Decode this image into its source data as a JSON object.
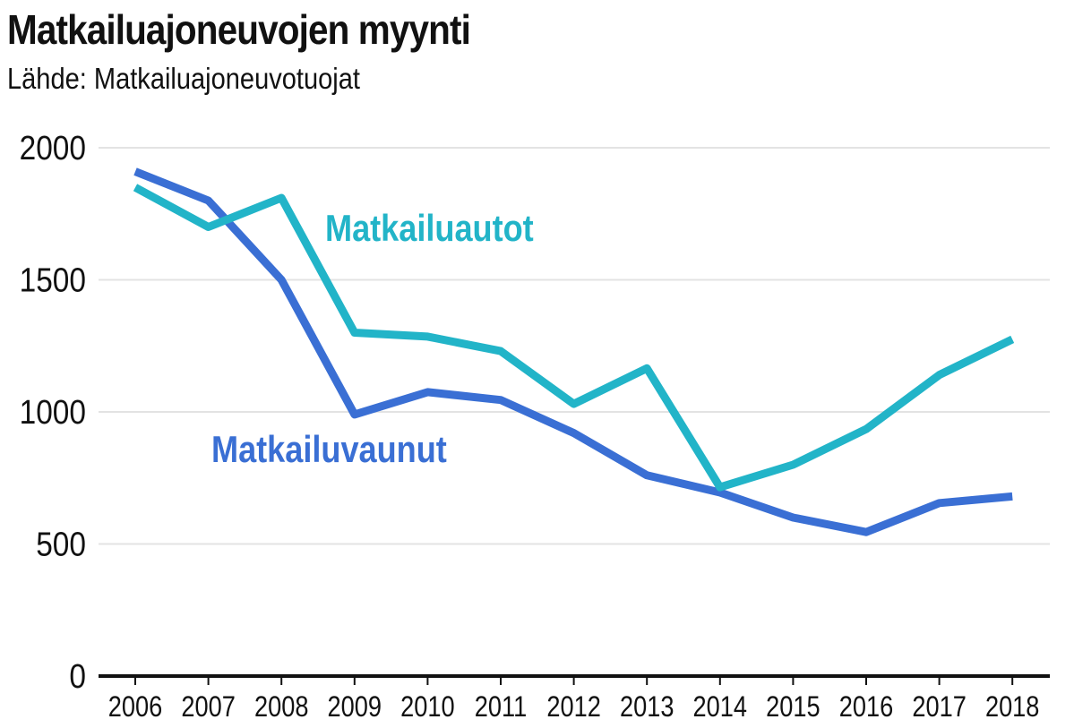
{
  "chart_data": {
    "type": "line",
    "title": "Matkailuajoneuvojen myynti",
    "subtitle": "Lähde: Matkailuajoneuvotuojat",
    "xlabel": "",
    "ylabel": "",
    "x": [
      "2006",
      "2007",
      "2008",
      "2009",
      "2010",
      "2011",
      "2012",
      "2013",
      "2014",
      "2015",
      "2016",
      "2017",
      "2018"
    ],
    "ylim": [
      0,
      2000
    ],
    "yticks": [
      "0",
      "500",
      "1000",
      "1500",
      "2000"
    ],
    "grid": "horizontal",
    "legend": "inline labels",
    "series": [
      {
        "name": "Matkailuautot",
        "color": "#22b4c8",
        "values": [
          1850,
          1700,
          1810,
          1300,
          1285,
          1230,
          1030,
          1165,
          715,
          800,
          935,
          1140,
          1275
        ]
      },
      {
        "name": "Matkailuvaunut",
        "color": "#3a6fd4",
        "values": [
          1910,
          1800,
          1500,
          990,
          1075,
          1045,
          920,
          760,
          695,
          600,
          545,
          655,
          680
        ]
      }
    ]
  }
}
